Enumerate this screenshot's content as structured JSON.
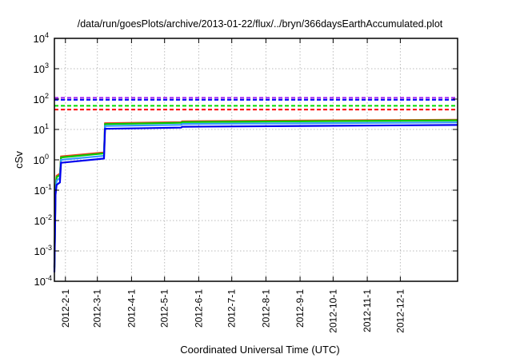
{
  "chart_data": {
    "type": "line",
    "title": "/data/run/goesPlots/archive/2013-01-22/flux/../bryn/366daysEarthAccumulated.plot",
    "xlabel": "Coordinated Universal Time (UTC)",
    "ylabel": "cSv",
    "yscale": "log",
    "ylim": [
      0.0001,
      10000
    ],
    "xlim": [
      "2012-01-22",
      "2013-01-22"
    ],
    "grid": true,
    "y_ticks": [
      {
        "base": "10",
        "exp": "-4",
        "value": 0.0001
      },
      {
        "base": "10",
        "exp": "-3",
        "value": 0.001
      },
      {
        "base": "10",
        "exp": "-2",
        "value": 0.01
      },
      {
        "base": "10",
        "exp": "-1",
        "value": 0.1
      },
      {
        "base": "10",
        "exp": "0",
        "value": 1
      },
      {
        "base": "10",
        "exp": "1",
        "value": 10
      },
      {
        "base": "10",
        "exp": "2",
        "value": 100
      },
      {
        "base": "10",
        "exp": "3",
        "value": 1000
      },
      {
        "base": "10",
        "exp": "4",
        "value": 10000
      }
    ],
    "x_ticks": [
      {
        "label": "2012-2-1",
        "date": "2012-02-01"
      },
      {
        "label": "2012-3-1",
        "date": "2012-03-01"
      },
      {
        "label": "2012-4-1",
        "date": "2012-04-01"
      },
      {
        "label": "2012-5-1",
        "date": "2012-05-01"
      },
      {
        "label": "2012-6-1",
        "date": "2012-06-01"
      },
      {
        "label": "2012-7-1",
        "date": "2012-07-01"
      },
      {
        "label": "2012-8-1",
        "date": "2012-08-01"
      },
      {
        "label": "2012-9-1",
        "date": "2012-09-01"
      },
      {
        "label": "2012-10-1",
        "date": "2012-10-01"
      },
      {
        "label": "2012-11-1",
        "date": "2012-11-01"
      },
      {
        "label": "2012-12-1",
        "date": "2012-12-01"
      }
    ],
    "thresholds": [
      {
        "color": "#a020f0",
        "value": 110
      },
      {
        "color": "#0000ff",
        "value": 95
      },
      {
        "color": "#00dd00",
        "value": 60
      },
      {
        "color": "#ff0000",
        "value": 45
      }
    ],
    "series": [
      {
        "color": "#e8401c",
        "points": [
          [
            "2012-01-22",
            0.0003
          ],
          [
            "2012-01-23",
            0.12
          ],
          [
            "2012-01-24",
            0.3
          ],
          [
            "2012-01-27",
            0.35
          ],
          [
            "2012-01-28",
            1.3
          ],
          [
            "2012-03-07",
            1.75
          ],
          [
            "2012-03-08",
            16
          ],
          [
            "2012-05-16",
            17.5
          ],
          [
            "2012-05-17",
            18.5
          ],
          [
            "2013-01-22",
            21
          ]
        ]
      },
      {
        "color": "#00cc00",
        "points": [
          [
            "2012-01-22",
            0.00028
          ],
          [
            "2012-01-23",
            0.11
          ],
          [
            "2012-01-24",
            0.27
          ],
          [
            "2012-01-27",
            0.31
          ],
          [
            "2012-01-28",
            1.2
          ],
          [
            "2012-03-07",
            1.62
          ],
          [
            "2012-03-08",
            15
          ],
          [
            "2012-05-16",
            16.5
          ],
          [
            "2012-05-17",
            17.5
          ],
          [
            "2013-01-22",
            20
          ]
        ]
      },
      {
        "color": "#3399ff",
        "points": [
          [
            "2012-01-22",
            0.00025
          ],
          [
            "2012-01-23",
            0.09
          ],
          [
            "2012-01-24",
            0.21
          ],
          [
            "2012-01-27",
            0.25
          ],
          [
            "2012-01-28",
            1.0
          ],
          [
            "2012-03-07",
            1.35
          ],
          [
            "2012-03-08",
            13
          ],
          [
            "2012-05-16",
            14.2
          ],
          [
            "2012-05-17",
            15.2
          ],
          [
            "2013-01-22",
            17
          ]
        ]
      },
      {
        "color": "#0000ee",
        "points": [
          [
            "2012-01-22",
            0.0002
          ],
          [
            "2012-01-23",
            0.07
          ],
          [
            "2012-01-24",
            0.15
          ],
          [
            "2012-01-27",
            0.18
          ],
          [
            "2012-01-28",
            0.8
          ],
          [
            "2012-03-07",
            1.1
          ],
          [
            "2012-03-08",
            10.5
          ],
          [
            "2012-05-16",
            11.5
          ],
          [
            "2012-05-17",
            12.3
          ],
          [
            "2013-01-22",
            14
          ]
        ]
      }
    ]
  }
}
